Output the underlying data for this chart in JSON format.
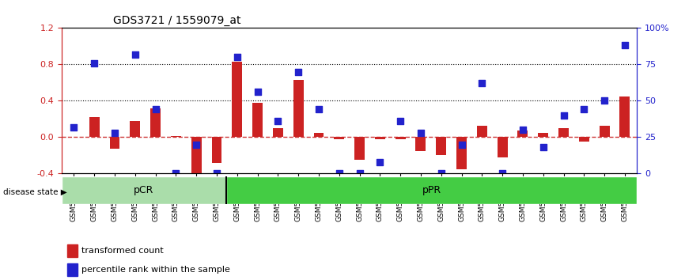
{
  "title": "GDS3721 / 1559079_at",
  "samples": [
    "GSM559062",
    "GSM559063",
    "GSM559064",
    "GSM559065",
    "GSM559066",
    "GSM559067",
    "GSM559068",
    "GSM559069",
    "GSM559042",
    "GSM559043",
    "GSM559044",
    "GSM559045",
    "GSM559046",
    "GSM559047",
    "GSM559048",
    "GSM559049",
    "GSM559050",
    "GSM559051",
    "GSM559052",
    "GSM559053",
    "GSM559054",
    "GSM559055",
    "GSM559056",
    "GSM559057",
    "GSM559058",
    "GSM559059",
    "GSM559060",
    "GSM559061"
  ],
  "transformed_count": [
    0.0,
    0.22,
    -0.13,
    0.18,
    0.32,
    0.01,
    -0.42,
    -0.28,
    0.83,
    0.38,
    0.1,
    0.63,
    0.05,
    -0.02,
    -0.25,
    -0.02,
    -0.02,
    -0.15,
    -0.2,
    -0.35,
    0.13,
    -0.22,
    0.07,
    0.05,
    0.1,
    -0.05,
    0.13,
    0.45
  ],
  "percentile_rank": [
    32,
    76,
    28,
    82,
    44,
    0,
    20,
    0,
    80,
    56,
    36,
    70,
    44,
    0,
    0,
    8,
    36,
    28,
    0,
    20,
    62,
    0,
    30,
    18,
    40,
    44,
    50,
    88
  ],
  "pCR_count": 8,
  "pPR_count": 20,
  "ylim_left": [
    -0.4,
    1.2
  ],
  "ylim_right": [
    0,
    100
  ],
  "hlines": [
    0.4,
    0.8
  ],
  "bar_color": "#cc2222",
  "dot_color": "#2222cc",
  "pCR_color": "#aaddaa",
  "pPR_color": "#44cc44",
  "background_color": "#e8e8e8",
  "zero_line_color": "#cc3333",
  "legend_bar_label": "transformed count",
  "legend_dot_label": "percentile rank within the sample",
  "disease_state_label": "disease state",
  "pCR_label": "pCR",
  "pPR_label": "pPR"
}
